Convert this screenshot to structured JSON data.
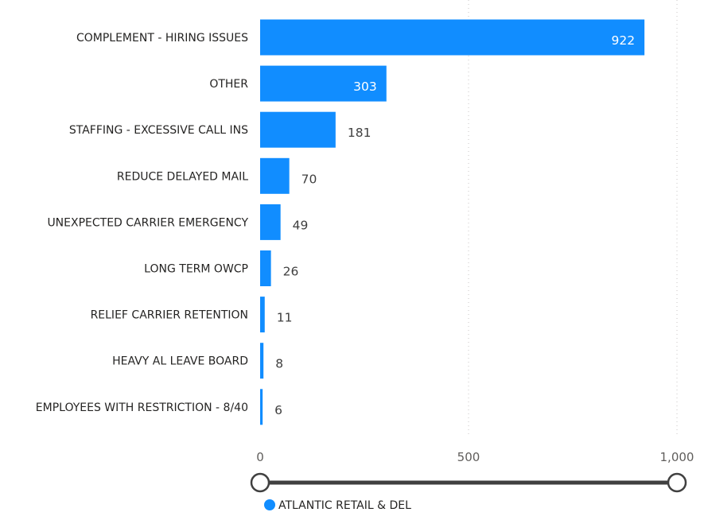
{
  "chart_data": {
    "type": "bar",
    "orientation": "horizontal",
    "categories": [
      "COMPLEMENT - HIRING ISSUES",
      "OTHER",
      "STAFFING - EXCESSIVE CALL INS",
      "REDUCE DELAYED MAIL",
      "UNEXPECTED CARRIER EMERGENCY",
      "LONG TERM OWCP",
      "RELIEF CARRIER RETENTION",
      "HEAVY AL LEAVE BOARD",
      "EMPLOYEES WITH RESTRICTION - 8/40"
    ],
    "series": [
      {
        "name": "ATLANTIC RETAIL & DEL",
        "color": "#118dff",
        "values": [
          922,
          303,
          181,
          70,
          49,
          26,
          11,
          8,
          6
        ],
        "value_labels": [
          "922",
          "303",
          "181",
          "70",
          "49",
          "26",
          "11",
          "8",
          "6"
        ]
      }
    ],
    "xlim": [
      0,
      1000
    ],
    "x_ticks": [
      0,
      500,
      1000
    ],
    "x_tick_labels": [
      "0",
      "500",
      "1,000"
    ],
    "grid": true,
    "legend_position": "bottom-left",
    "xlabel": "",
    "ylabel": "",
    "title": ""
  },
  "range_slider": {
    "min_handle": 0,
    "max_handle": 1,
    "color": "#404040"
  },
  "legend": {
    "label": "ATLANTIC RETAIL & DEL",
    "color": "#118dff"
  }
}
